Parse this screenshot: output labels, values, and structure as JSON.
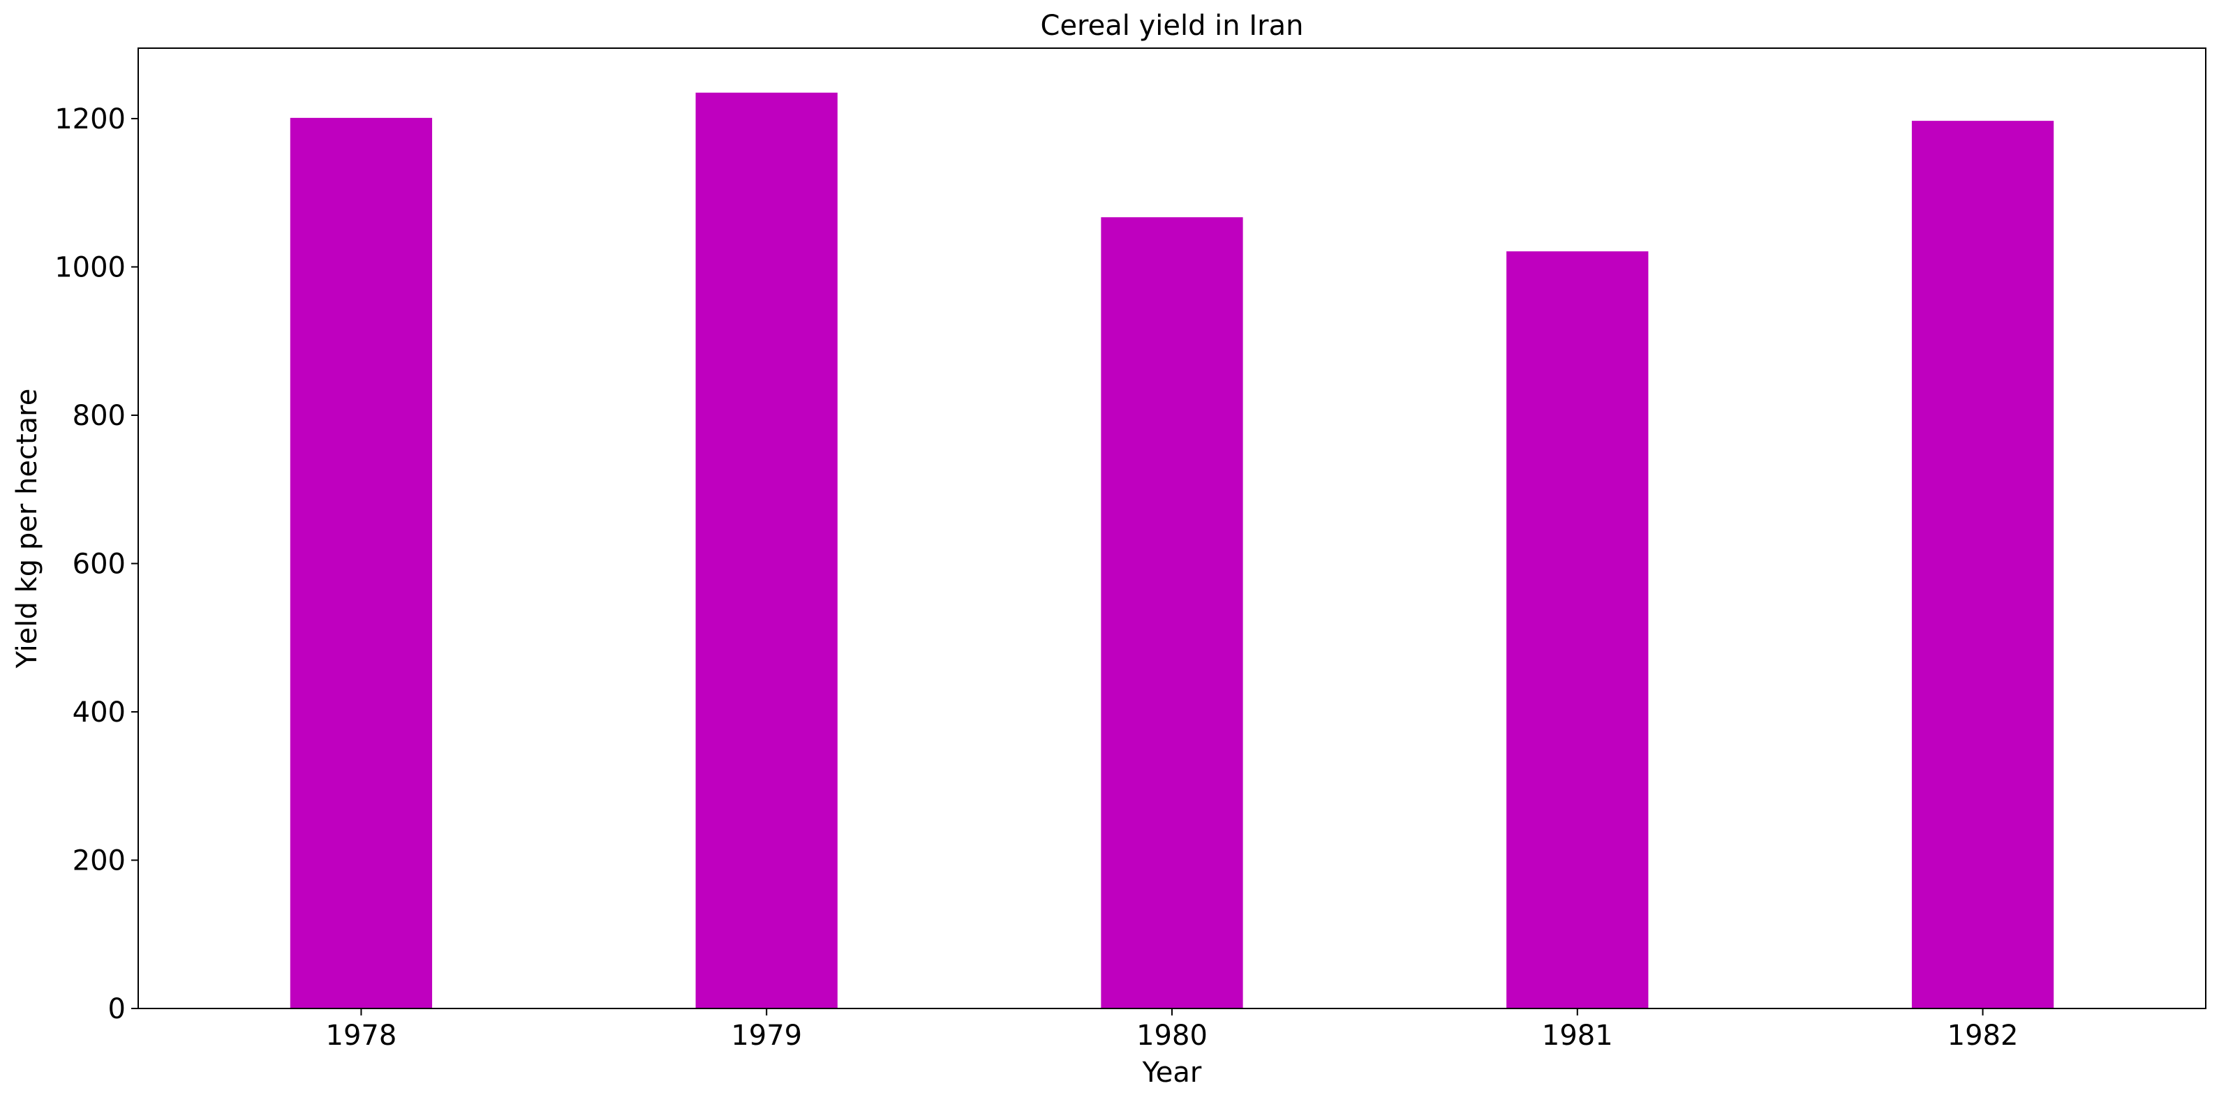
{
  "chart_data": {
    "type": "bar",
    "title": "Cereal yield in Iran",
    "xlabel": "Year",
    "ylabel": "Yield kg per hectare",
    "categories": [
      "1978",
      "1979",
      "1980",
      "1981",
      "1982"
    ],
    "series": [
      {
        "values": [
          1201,
          1235,
          1067,
          1021,
          1197
        ],
        "color": "#bf00bf"
      }
    ],
    "ylim": [
      0,
      1295
    ],
    "yticks": [
      0,
      200,
      400,
      600,
      800,
      1000,
      1200
    ],
    "grid": false,
    "legend": "none"
  }
}
